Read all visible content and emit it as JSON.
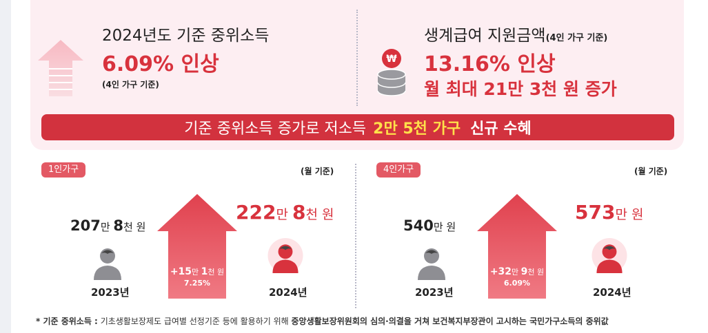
{
  "top_left": {
    "title": "2024년도 기준 중위소득",
    "highlight": "6.09% 인상",
    "note": "(4인 가구 기준)"
  },
  "top_right": {
    "title": "생계급여 지원금액",
    "title_note": "(4인 가구 기준)",
    "highlight": "13.16% 인상",
    "highlight2": "월 최대 21만 3천 원 증가"
  },
  "banner": {
    "prefix": "기준 중위소득 증가로 저소득",
    "highlight": "2만 5천 가구",
    "suffix": "신규 수혜"
  },
  "section_1": {
    "tag": "1인가구",
    "unit_note": "(월 기준)",
    "before": {
      "parts": [
        [
          "207",
          "만 "
        ],
        [
          "8",
          "천 원"
        ]
      ],
      "year": "2023년"
    },
    "after": {
      "parts": [
        [
          "222",
          "만 "
        ],
        [
          "8",
          "천 원"
        ]
      ],
      "year": "2024년"
    },
    "increase": {
      "a": "+15",
      "a_unit": "만 ",
      "b": "1",
      "b_unit": "천 원",
      "pct": "7.25%"
    }
  },
  "section_4": {
    "tag": "4인가구",
    "unit_note": "(월 기준)",
    "before": {
      "parts": [
        [
          "540",
          "만 원"
        ]
      ],
      "year": "2023년"
    },
    "after": {
      "parts": [
        [
          "573",
          "만 원"
        ]
      ],
      "year": "2024년"
    },
    "increase": {
      "a": "+32",
      "a_unit": "만 ",
      "b": "9",
      "b_unit": "천 원",
      "pct": "6.09%"
    }
  },
  "footnote": {
    "label": "* 기준 중위소득 :",
    "text": "기초생활보장제도 급여별 선정기준 등에 활용하기 위해",
    "strong": "중앙생활보장위원회의 심의·의결을 거쳐 보건복지부장관이 고시하는 국민가구소득의 중위값"
  },
  "colors": {
    "accent": "#d8323d",
    "panel": "#fdeef2",
    "tag": "#e35964"
  },
  "icons": [
    "up-arrow-icon",
    "won-coins-icon",
    "person-icon",
    "house-arrow-icon"
  ]
}
